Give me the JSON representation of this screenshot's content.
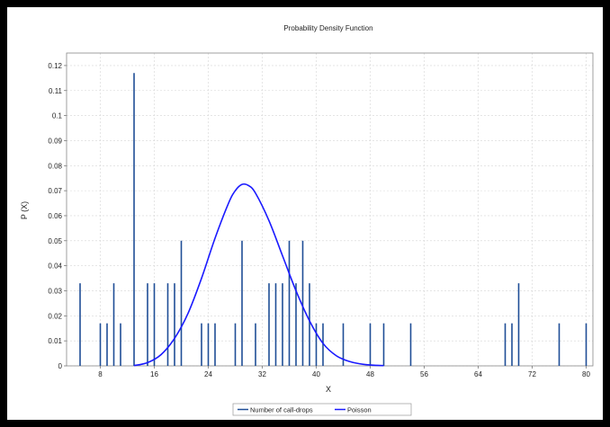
{
  "chart_data": {
    "type": "bar",
    "title": "Probability Density Function",
    "xlabel": "X",
    "ylabel": "P (X)",
    "xlim": [
      3,
      81
    ],
    "ylim": [
      0,
      0.125
    ],
    "x_ticks": [
      8,
      16,
      24,
      32,
      40,
      48,
      56,
      64,
      72,
      80
    ],
    "y_ticks": [
      0,
      0.01,
      0.02,
      0.03,
      0.04,
      0.05,
      0.06,
      0.07,
      0.08,
      0.09,
      0.1,
      0.11,
      0.12
    ],
    "grid": true,
    "legend_position": "bottom",
    "series": [
      {
        "name": "Number of call-drops",
        "style": "impulse",
        "color": "#1f4e96",
        "x": [
          5,
          8,
          9,
          10,
          11,
          13,
          15,
          16,
          18,
          19,
          20,
          23,
          24,
          25,
          28,
          29,
          31,
          33,
          34,
          35,
          36,
          37,
          38,
          39,
          40,
          41,
          44,
          48,
          50,
          54,
          68,
          69,
          70,
          76,
          80
        ],
        "y": [
          0.033,
          0.017,
          0.017,
          0.033,
          0.017,
          0.117,
          0.033,
          0.033,
          0.033,
          0.033,
          0.05,
          0.017,
          0.017,
          0.017,
          0.017,
          0.05,
          0.017,
          0.033,
          0.033,
          0.033,
          0.05,
          0.033,
          0.05,
          0.033,
          0.017,
          0.017,
          0.017,
          0.017,
          0.017,
          0.017,
          0.017,
          0.017,
          0.033,
          0.017,
          0.017
        ]
      },
      {
        "name": "Poisson",
        "style": "line",
        "color": "#1a1aff",
        "x": [
          13,
          15,
          17,
          19,
          21,
          23,
          25,
          27,
          28,
          29,
          30,
          31,
          33,
          35,
          37,
          39,
          41,
          43,
          45,
          47,
          49,
          50
        ],
        "y": [
          0.0001,
          0.0013,
          0.0045,
          0.011,
          0.021,
          0.035,
          0.051,
          0.065,
          0.07,
          0.0725,
          0.072,
          0.069,
          0.058,
          0.044,
          0.03,
          0.018,
          0.009,
          0.004,
          0.0017,
          0.0006,
          0.0002,
          0.0001
        ]
      }
    ]
  }
}
